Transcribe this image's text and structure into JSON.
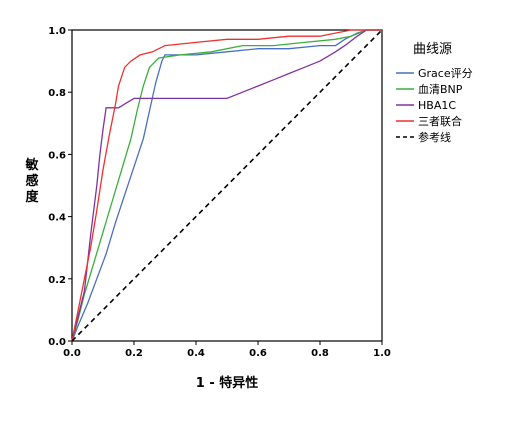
{
  "chart_data": {
    "type": "line",
    "title": "",
    "xlabel": "1 - 特异性",
    "ylabel": "敏感度",
    "xlim": [
      0,
      1
    ],
    "ylim": [
      0,
      1
    ],
    "x_ticks": [
      "0.0",
      "0.2",
      "0.4",
      "0.6",
      "0.8",
      "1.0"
    ],
    "y_ticks": [
      "0.0",
      "0.2",
      "0.4",
      "0.6",
      "0.8",
      "1.0"
    ],
    "grid": false,
    "legend": {
      "title": "曲线源",
      "position": "right"
    },
    "series": [
      {
        "name": "Grace评分",
        "color": "#4a6fc0",
        "style": "solid",
        "points": [
          [
            0,
            0
          ],
          [
            0.02,
            0.05
          ],
          [
            0.05,
            0.12
          ],
          [
            0.08,
            0.2
          ],
          [
            0.11,
            0.28
          ],
          [
            0.14,
            0.38
          ],
          [
            0.17,
            0.47
          ],
          [
            0.2,
            0.56
          ],
          [
            0.23,
            0.65
          ],
          [
            0.25,
            0.74
          ],
          [
            0.27,
            0.83
          ],
          [
            0.29,
            0.9
          ],
          [
            0.3,
            0.92
          ],
          [
            0.4,
            0.92
          ],
          [
            0.5,
            0.93
          ],
          [
            0.6,
            0.94
          ],
          [
            0.7,
            0.94
          ],
          [
            0.8,
            0.95
          ],
          [
            0.85,
            0.95
          ],
          [
            0.88,
            0.97
          ],
          [
            0.92,
            0.99
          ],
          [
            0.95,
            1.0
          ],
          [
            1.0,
            1.0
          ]
        ]
      },
      {
        "name": "血清BNP",
        "color": "#3cae3c",
        "style": "solid",
        "points": [
          [
            0,
            0
          ],
          [
            0.02,
            0.07
          ],
          [
            0.04,
            0.15
          ],
          [
            0.07,
            0.25
          ],
          [
            0.1,
            0.35
          ],
          [
            0.13,
            0.45
          ],
          [
            0.16,
            0.55
          ],
          [
            0.19,
            0.65
          ],
          [
            0.21,
            0.74
          ],
          [
            0.23,
            0.82
          ],
          [
            0.25,
            0.88
          ],
          [
            0.28,
            0.91
          ],
          [
            0.35,
            0.92
          ],
          [
            0.45,
            0.93
          ],
          [
            0.55,
            0.95
          ],
          [
            0.65,
            0.95
          ],
          [
            0.75,
            0.96
          ],
          [
            0.85,
            0.97
          ],
          [
            0.9,
            0.98
          ],
          [
            0.95,
            1.0
          ],
          [
            1.0,
            1.0
          ]
        ]
      },
      {
        "name": "HBA1C",
        "color": "#8033a0",
        "style": "solid",
        "points": [
          [
            0,
            0
          ],
          [
            0.02,
            0.08
          ],
          [
            0.04,
            0.16
          ],
          [
            0.05,
            0.25
          ],
          [
            0.06,
            0.34
          ],
          [
            0.07,
            0.42
          ],
          [
            0.08,
            0.5
          ],
          [
            0.09,
            0.6
          ],
          [
            0.1,
            0.68
          ],
          [
            0.11,
            0.75
          ],
          [
            0.15,
            0.75
          ],
          [
            0.2,
            0.78
          ],
          [
            0.3,
            0.78
          ],
          [
            0.4,
            0.78
          ],
          [
            0.5,
            0.78
          ],
          [
            0.55,
            0.8
          ],
          [
            0.6,
            0.82
          ],
          [
            0.65,
            0.84
          ],
          [
            0.7,
            0.86
          ],
          [
            0.75,
            0.88
          ],
          [
            0.8,
            0.9
          ],
          [
            0.85,
            0.93
          ],
          [
            0.88,
            0.95
          ],
          [
            0.92,
            0.98
          ],
          [
            0.95,
            1.0
          ],
          [
            1.0,
            1.0
          ]
        ]
      },
      {
        "name": "三者联合",
        "color": "#ee3030",
        "style": "solid",
        "points": [
          [
            0,
            0
          ],
          [
            0.02,
            0.1
          ],
          [
            0.04,
            0.2
          ],
          [
            0.06,
            0.3
          ],
          [
            0.08,
            0.42
          ],
          [
            0.1,
            0.55
          ],
          [
            0.12,
            0.66
          ],
          [
            0.14,
            0.76
          ],
          [
            0.15,
            0.82
          ],
          [
            0.17,
            0.88
          ],
          [
            0.19,
            0.9
          ],
          [
            0.22,
            0.92
          ],
          [
            0.26,
            0.93
          ],
          [
            0.3,
            0.95
          ],
          [
            0.4,
            0.96
          ],
          [
            0.5,
            0.97
          ],
          [
            0.6,
            0.97
          ],
          [
            0.7,
            0.98
          ],
          [
            0.8,
            0.98
          ],
          [
            0.9,
            1.0
          ],
          [
            1.0,
            1.0
          ]
        ]
      },
      {
        "name": "参考线",
        "color": "#000000",
        "style": "dashed",
        "points": [
          [
            0,
            0
          ],
          [
            1,
            1
          ]
        ]
      }
    ]
  }
}
